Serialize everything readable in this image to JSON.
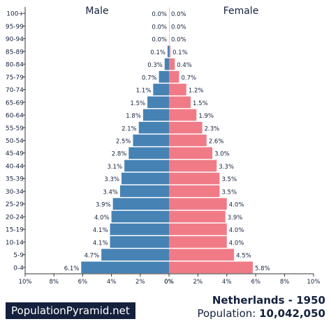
{
  "chart_data": {
    "type": "bar",
    "orientation": "horizontal-pyramid",
    "categories": [
      "100+",
      "95-99",
      "90-94",
      "85-89",
      "80-84",
      "75-79",
      "70-74",
      "65-69",
      "60-64",
      "55-59",
      "50-54",
      "45-49",
      "40-44",
      "35-39",
      "30-34",
      "25-29",
      "20-24",
      "15-19",
      "10-14",
      "5-9",
      "0-4"
    ],
    "series": [
      {
        "name": "Male",
        "color": "#4682b4",
        "values": [
          0.0,
          0.0,
          0.0,
          0.1,
          0.3,
          0.7,
          1.1,
          1.5,
          1.8,
          2.1,
          2.5,
          2.8,
          3.1,
          3.3,
          3.4,
          3.9,
          4.0,
          4.1,
          4.1,
          4.7,
          6.1
        ],
        "labels": [
          "0.0%",
          "0.0%",
          "0.0%",
          "0.1%",
          "0.3%",
          "0.7%",
          "1.1%",
          "1.5%",
          "1.8%",
          "2.1%",
          "2.5%",
          "2.8%",
          "3.1%",
          "3.3%",
          "3.4%",
          "3.9%",
          "4.0%",
          "4.1%",
          "4.1%",
          "4.7%",
          "6.1%"
        ]
      },
      {
        "name": "Female",
        "color": "#f07b87",
        "values": [
          0.0,
          0.0,
          0.0,
          0.1,
          0.4,
          0.7,
          1.2,
          1.5,
          1.9,
          2.3,
          2.6,
          3.0,
          3.3,
          3.5,
          3.5,
          4.0,
          3.9,
          4.0,
          4.0,
          4.5,
          5.8
        ],
        "labels": [
          "0.0%",
          "0.0%",
          "0.0%",
          "0.1%",
          "0.4%",
          "0.7%",
          "1.2%",
          "1.5%",
          "1.9%",
          "2.3%",
          "2.6%",
          "3.0%",
          "3.3%",
          "3.5%",
          "3.5%",
          "4.0%",
          "3.9%",
          "4.0%",
          "4.0%",
          "4.5%",
          "5.8%"
        ]
      }
    ],
    "xlim": [
      0,
      10
    ],
    "x_ticks_left": [
      "10%",
      "8%",
      "6%",
      "4%",
      "2%",
      "0%"
    ],
    "x_ticks_right": [
      "0%",
      "2%",
      "4%",
      "6%",
      "8%",
      "10%"
    ],
    "grid": false
  },
  "footer": {
    "brand": "PopulationPyramid.net",
    "country_year": "Netherlands - 1950",
    "population_label": "Population: ",
    "population_value": "10,042,050"
  }
}
